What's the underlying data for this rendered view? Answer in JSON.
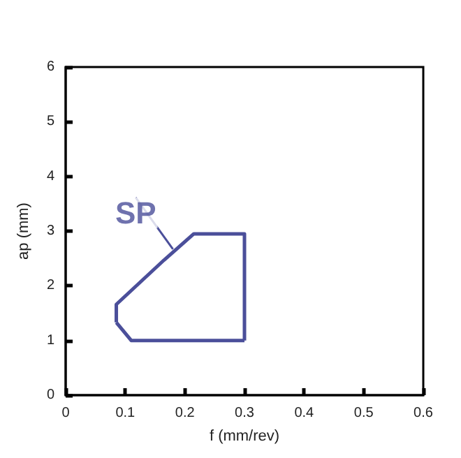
{
  "chart_data": {
    "type": "line",
    "xlabel": "f (mm/rev)",
    "ylabel": "ap (mm)",
    "xlim": [
      0,
      0.6
    ],
    "xticks": [
      0,
      0.1,
      0.2,
      0.3,
      0.4,
      0.5,
      0.6
    ],
    "ylim": [
      0,
      6
    ],
    "yticks": [
      0,
      1,
      2,
      3,
      4,
      5,
      6
    ],
    "grid": false,
    "marker": "none",
    "line_style": "solid",
    "series": [
      {
        "color": "#4b4f9a",
        "x": [
          0.085,
          0.085,
          0.165,
          0.215,
          0.3,
          0.3
        ],
        "values": [
          1.33,
          1.66,
          2.47,
          2.95,
          2.95,
          1
        ]
      },
      {
        "color": "#4b4f9a",
        "x": [
          0.085,
          0.11,
          0.3
        ],
        "values": [
          1.33,
          1,
          1
        ]
      }
    ],
    "annotations": [
      {
        "text": "SP",
        "x": 0.18,
        "y": 2.67
      }
    ]
  }
}
